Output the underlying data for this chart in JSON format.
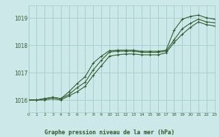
{
  "title": "Graphe pression niveau de la mer (hPa)",
  "background_color": "#cce8e8",
  "grid_color": "#99cccc",
  "line_color": "#2d5a27",
  "x_hours": [
    0,
    1,
    2,
    3,
    4,
    5,
    6,
    7,
    8,
    9,
    10,
    11,
    12,
    13,
    14,
    15,
    16,
    17,
    18,
    19,
    20,
    21,
    22,
    23
  ],
  "line_upper": [
    1016.0,
    1016.0,
    1016.05,
    1016.1,
    1016.05,
    1016.3,
    1016.6,
    1016.85,
    1017.35,
    1017.6,
    1017.8,
    1017.82,
    1017.82,
    1017.82,
    1017.78,
    1017.78,
    1017.78,
    1017.82,
    1018.55,
    1018.95,
    1019.05,
    1019.1,
    1019.0,
    1018.95
  ],
  "line_mid": [
    1016.0,
    1016.0,
    1016.05,
    1016.1,
    1016.05,
    1016.2,
    1016.45,
    1016.65,
    1017.1,
    1017.45,
    1017.75,
    1017.78,
    1017.78,
    1017.78,
    1017.74,
    1017.74,
    1017.74,
    1017.78,
    1018.2,
    1018.6,
    1018.8,
    1018.95,
    1018.85,
    1018.82
  ],
  "line_lower": [
    1016.0,
    1016.0,
    1016.0,
    1016.05,
    1016.0,
    1016.15,
    1016.3,
    1016.5,
    1016.9,
    1017.25,
    1017.6,
    1017.65,
    1017.68,
    1017.68,
    1017.65,
    1017.65,
    1017.65,
    1017.72,
    1018.1,
    1018.4,
    1018.65,
    1018.85,
    1018.75,
    1018.7
  ],
  "ylim": [
    1015.55,
    1019.45
  ],
  "yticks": [
    1016,
    1017,
    1018,
    1019
  ],
  "xlim": [
    0,
    23
  ],
  "xticks": [
    0,
    1,
    2,
    3,
    4,
    5,
    6,
    7,
    8,
    9,
    10,
    11,
    12,
    13,
    14,
    15,
    16,
    17,
    18,
    19,
    20,
    21,
    22,
    23
  ]
}
